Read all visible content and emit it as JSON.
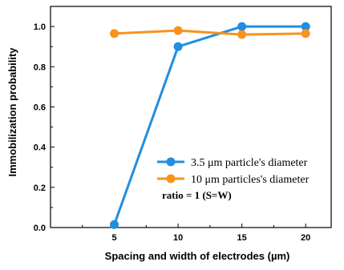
{
  "chart_data": {
    "type": "line",
    "xlabel": "Spacing and width of electrodes (µm)",
    "ylabel": "Immobilization probability",
    "x": [
      5,
      10,
      15,
      20
    ],
    "xlim": [
      0,
      22
    ],
    "ylim": [
      0,
      1.1
    ],
    "x_ticks": [
      "5",
      "10",
      "15",
      "20"
    ],
    "y_ticks": [
      "0.0",
      "0.2",
      "0.4",
      "0.6",
      "0.8",
      "1.0"
    ],
    "series": [
      {
        "name": "3.5 μm particle's diameter",
        "color": "#1f8fe0",
        "values": [
          0.015,
          0.9,
          1.0,
          1.0
        ]
      },
      {
        "name": "10 μm particles's diameter",
        "color": "#f7931e",
        "values": [
          0.965,
          0.98,
          0.96,
          0.965
        ]
      }
    ],
    "annotation": "ratio = 1 (S=W)",
    "legend_position": "lower-right",
    "grid": false
  }
}
